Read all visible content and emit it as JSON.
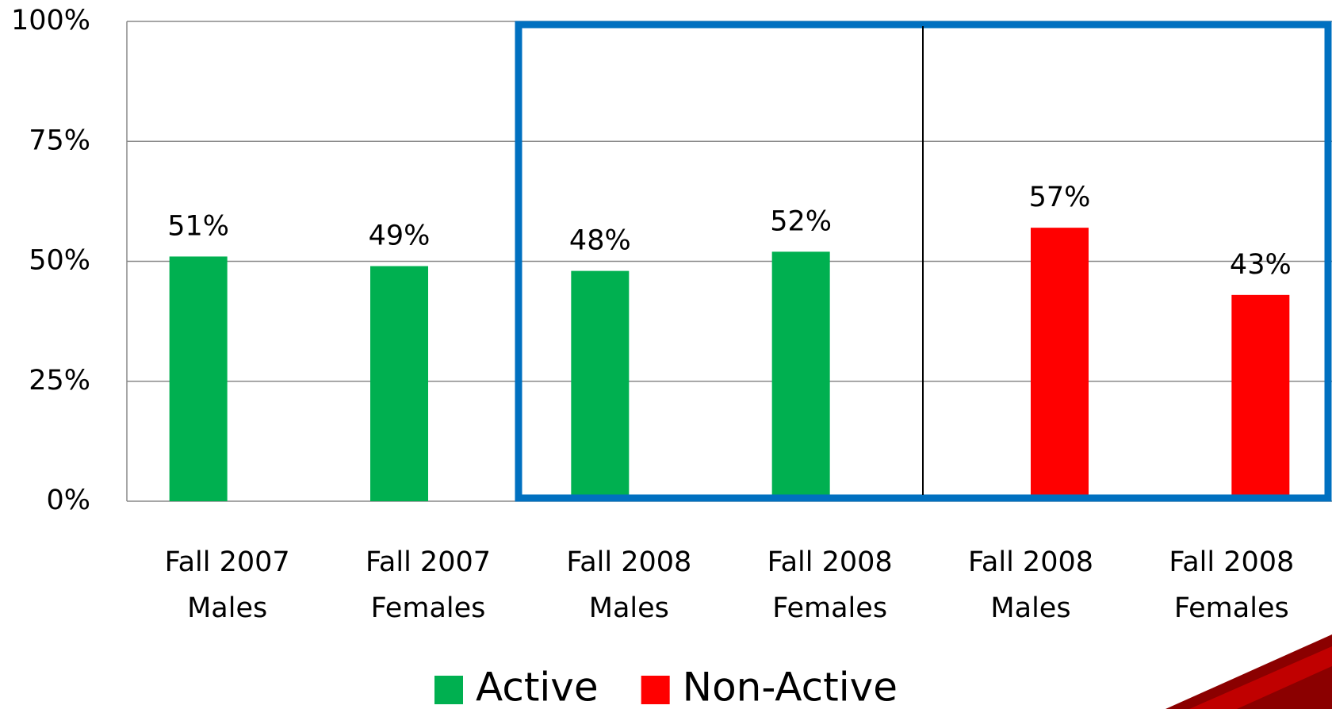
{
  "chart_data": {
    "type": "bar",
    "categories": [
      [
        "Fall 2007",
        "Males"
      ],
      [
        "Fall 2007",
        "Females"
      ],
      [
        "Fall 2008",
        "Males"
      ],
      [
        "Fall 2008",
        "Females"
      ],
      [
        "Fall 2008",
        "Males"
      ],
      [
        "Fall 2008",
        "Females"
      ]
    ],
    "series": [
      {
        "name": "Active",
        "color": "#00b050",
        "values": [
          51,
          49,
          48,
          52,
          null,
          null
        ],
        "value_labels": [
          "51%",
          "49%",
          "48%",
          "52%",
          null,
          null
        ]
      },
      {
        "name": "Non-Active",
        "color": "#ff0000",
        "values": [
          null,
          null,
          null,
          null,
          57,
          43
        ],
        "value_labels": [
          null,
          null,
          null,
          null,
          "57%",
          "43%"
        ]
      }
    ],
    "ylim": [
      0,
      100
    ],
    "yticks": [
      {
        "value": 0,
        "label": "0%"
      },
      {
        "value": 25,
        "label": "25%"
      },
      {
        "value": 50,
        "label": "50%"
      },
      {
        "value": 75,
        "label": "75%"
      },
      {
        "value": 100,
        "label": "100%"
      }
    ],
    "grid": true,
    "legend": "bottom"
  }
}
